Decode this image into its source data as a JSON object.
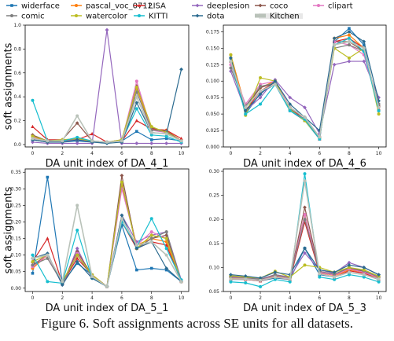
{
  "caption": "Figure 6. Soft assignments across SE units for all datasets.",
  "legend": [
    {
      "name": "widerface",
      "color": "#1f77b4",
      "marker": "square"
    },
    {
      "name": "pascal_voc_0712",
      "color": "#ff7f0e",
      "marker": "circle"
    },
    {
      "name": "LISA",
      "color": "#d62728",
      "marker": "triangle"
    },
    {
      "name": "deeplesion",
      "color": "#9467bd",
      "marker": "diamond"
    },
    {
      "name": "coco",
      "color": "#8c564b",
      "marker": "diamond"
    },
    {
      "name": "clipart",
      "color": "#e377c2",
      "marker": "circle"
    },
    {
      "name": "comic",
      "color": "#7f7f7f",
      "marker": "circle"
    },
    {
      "name": "watercolor",
      "color": "#bcbd22",
      "marker": "circle"
    },
    {
      "name": "KITTI",
      "color": "#17becf",
      "marker": "circle"
    },
    {
      "name": "dota",
      "color": "#2a6a8f",
      "marker": "diamond"
    },
    {
      "name": "Kitchen",
      "color": "#b9c2b9",
      "marker": "none"
    }
  ],
  "chart_data": [
    {
      "type": "line",
      "xlabel": "DA unit index of DA_4_1",
      "ylabel": "soft assignments",
      "xlim": [
        -0.5,
        10.5
      ],
      "ylim": [
        -0.02,
        1.0
      ],
      "xticks": [
        0,
        2,
        4,
        6,
        8,
        10
      ],
      "yticks": [
        0.0,
        0.2,
        0.4,
        0.6,
        0.8,
        1.0
      ],
      "yticklabels": [
        "0.0",
        "0.2",
        "0.4",
        "0.6",
        "0.8",
        "1.0"
      ],
      "x": [
        0,
        1,
        2,
        3,
        4,
        5,
        6,
        7,
        8,
        9,
        10
      ],
      "series": [
        {
          "name": "widerface",
          "values": [
            0.04,
            0.02,
            0.02,
            0.03,
            0.02,
            0.02,
            0.03,
            0.11,
            0.04,
            0.05,
            0.03
          ]
        },
        {
          "name": "pascal_voc_0712",
          "values": [
            0.06,
            0.03,
            0.03,
            0.05,
            0.03,
            0.02,
            0.04,
            0.47,
            0.13,
            0.12,
            0.03
          ]
        },
        {
          "name": "LISA",
          "values": [
            0.15,
            0.04,
            0.04,
            0.04,
            0.09,
            0.02,
            0.03,
            0.2,
            0.13,
            0.12,
            0.05
          ]
        },
        {
          "name": "deeplesion",
          "values": [
            0.02,
            0.01,
            0.01,
            0.01,
            0.01,
            0.96,
            0.01,
            0.01,
            0.01,
            0.01,
            0.01
          ]
        },
        {
          "name": "coco",
          "values": [
            0.08,
            0.03,
            0.04,
            0.18,
            0.03,
            0.02,
            0.04,
            0.49,
            0.14,
            0.11,
            0.03
          ]
        },
        {
          "name": "clipart",
          "values": [
            0.06,
            0.02,
            0.03,
            0.04,
            0.03,
            0.02,
            0.03,
            0.53,
            0.12,
            0.1,
            0.03
          ]
        },
        {
          "name": "comic",
          "values": [
            0.05,
            0.02,
            0.03,
            0.05,
            0.03,
            0.02,
            0.03,
            0.44,
            0.12,
            0.11,
            0.03
          ]
        },
        {
          "name": "watercolor",
          "values": [
            0.07,
            0.03,
            0.04,
            0.05,
            0.03,
            0.02,
            0.04,
            0.48,
            0.15,
            0.1,
            0.03
          ]
        },
        {
          "name": "KITTI",
          "values": [
            0.37,
            0.03,
            0.03,
            0.06,
            0.03,
            0.02,
            0.03,
            0.3,
            0.08,
            0.07,
            0.02
          ]
        },
        {
          "name": "dota",
          "values": [
            0.04,
            0.02,
            0.02,
            0.04,
            0.02,
            0.01,
            0.02,
            0.35,
            0.1,
            0.09,
            0.63
          ]
        },
        {
          "name": "Kitchen",
          "values": [
            0.05,
            0.03,
            0.03,
            0.24,
            0.03,
            0.02,
            0.03,
            0.4,
            0.1,
            0.09,
            0.03
          ]
        }
      ]
    },
    {
      "type": "line",
      "xlabel": "DA unit index of DA_4_6",
      "ylabel": "",
      "xlim": [
        -0.5,
        10.5
      ],
      "ylim": [
        0.0,
        0.185
      ],
      "xticks": [
        0,
        2,
        4,
        6,
        8,
        10
      ],
      "yticks": [
        0.0,
        0.025,
        0.05,
        0.075,
        0.1,
        0.125,
        0.15,
        0.175
      ],
      "yticklabels": [
        "0.000",
        "0.025",
        "0.050",
        "0.075",
        "0.100",
        "0.125",
        "0.150",
        "0.175"
      ],
      "x": [
        0,
        1,
        2,
        3,
        4,
        5,
        6,
        7,
        8,
        9,
        10
      ],
      "series": [
        {
          "name": "widerface",
          "values": [
            0.135,
            0.05,
            0.082,
            0.095,
            0.055,
            0.04,
            0.012,
            0.16,
            0.18,
            0.155,
            0.055
          ]
        },
        {
          "name": "pascal_voc_0712",
          "values": [
            0.14,
            0.06,
            0.09,
            0.1,
            0.06,
            0.04,
            0.015,
            0.165,
            0.17,
            0.15,
            0.06
          ]
        },
        {
          "name": "LISA",
          "values": [
            0.13,
            0.055,
            0.085,
            0.098,
            0.058,
            0.042,
            0.012,
            0.16,
            0.165,
            0.15,
            0.058
          ]
        },
        {
          "name": "deeplesion",
          "values": [
            0.115,
            0.055,
            0.075,
            0.102,
            0.075,
            0.06,
            0.02,
            0.125,
            0.13,
            0.13,
            0.075
          ]
        },
        {
          "name": "coco",
          "values": [
            0.13,
            0.06,
            0.09,
            0.097,
            0.06,
            0.045,
            0.015,
            0.16,
            0.16,
            0.145,
            0.062
          ]
        },
        {
          "name": "clipart",
          "values": [
            0.125,
            0.065,
            0.095,
            0.1,
            0.06,
            0.045,
            0.015,
            0.16,
            0.155,
            0.14,
            0.06
          ]
        },
        {
          "name": "comic",
          "values": [
            0.12,
            0.062,
            0.092,
            0.097,
            0.058,
            0.045,
            0.015,
            0.15,
            0.155,
            0.145,
            0.065
          ]
        },
        {
          "name": "watercolor",
          "values": [
            0.14,
            0.048,
            0.105,
            0.1,
            0.057,
            0.04,
            0.013,
            0.15,
            0.135,
            0.15,
            0.05
          ]
        },
        {
          "name": "KITTI",
          "values": [
            0.13,
            0.05,
            0.065,
            0.095,
            0.055,
            0.042,
            0.012,
            0.155,
            0.165,
            0.145,
            0.055
          ]
        },
        {
          "name": "dota",
          "values": [
            0.135,
            0.055,
            0.08,
            0.1,
            0.065,
            0.045,
            0.025,
            0.165,
            0.175,
            0.16,
            0.07
          ]
        },
        {
          "name": "Kitchen",
          "values": [
            0.13,
            0.06,
            0.085,
            0.095,
            0.06,
            0.045,
            0.015,
            0.155,
            0.16,
            0.15,
            0.06
          ]
        }
      ]
    },
    {
      "type": "line",
      "xlabel": "DA unit index of DA_5_1",
      "ylabel": "soft assignments",
      "xlim": [
        -0.5,
        10.5
      ],
      "ylim": [
        -0.01,
        0.36
      ],
      "xticks": [
        0,
        2,
        4,
        6,
        8,
        10
      ],
      "yticks": [
        0.0,
        0.05,
        0.1,
        0.15,
        0.2,
        0.25,
        0.3,
        0.35
      ],
      "yticklabels": [
        "0.00",
        "0.05",
        "0.10",
        "0.15",
        "0.20",
        "0.25",
        "0.30",
        "0.35"
      ],
      "x": [
        0,
        1,
        2,
        3,
        4,
        5,
        6,
        7,
        8,
        9,
        10
      ],
      "series": [
        {
          "name": "widerface",
          "values": [
            0.045,
            0.335,
            0.015,
            0.075,
            0.04,
            0.005,
            0.19,
            0.055,
            0.06,
            0.055,
            0.02
          ]
        },
        {
          "name": "pascal_voc_0712",
          "values": [
            0.06,
            0.1,
            0.015,
            0.1,
            0.04,
            0.005,
            0.31,
            0.13,
            0.15,
            0.14,
            0.02
          ]
        },
        {
          "name": "LISA",
          "values": [
            0.08,
            0.15,
            0.015,
            0.09,
            0.04,
            0.005,
            0.2,
            0.12,
            0.14,
            0.13,
            0.02
          ]
        },
        {
          "name": "deeplesion",
          "values": [
            0.09,
            0.1,
            0.01,
            0.12,
            0.03,
            0.005,
            0.22,
            0.14,
            0.16,
            0.17,
            0.025
          ]
        },
        {
          "name": "coco",
          "values": [
            0.07,
            0.1,
            0.015,
            0.11,
            0.04,
            0.005,
            0.34,
            0.12,
            0.15,
            0.16,
            0.02
          ]
        },
        {
          "name": "clipart",
          "values": [
            0.065,
            0.1,
            0.012,
            0.105,
            0.035,
            0.005,
            0.3,
            0.13,
            0.17,
            0.15,
            0.02
          ]
        },
        {
          "name": "comic",
          "values": [
            0.07,
            0.09,
            0.015,
            0.1,
            0.035,
            0.005,
            0.32,
            0.12,
            0.15,
            0.17,
            0.02
          ]
        },
        {
          "name": "watercolor",
          "values": [
            0.08,
            0.1,
            0.02,
            0.1,
            0.04,
            0.005,
            0.32,
            0.12,
            0.16,
            0.15,
            0.02
          ]
        },
        {
          "name": "KITTI",
          "values": [
            0.1,
            0.02,
            0.015,
            0.175,
            0.03,
            0.005,
            0.2,
            0.125,
            0.21,
            0.12,
            0.025
          ]
        },
        {
          "name": "dota",
          "values": [
            0.09,
            0.105,
            0.01,
            0.08,
            0.03,
            0.005,
            0.22,
            0.12,
            0.14,
            0.06,
            0.02
          ]
        },
        {
          "name": "Kitchen",
          "values": [
            0.09,
            0.1,
            0.02,
            0.25,
            0.035,
            0.005,
            0.21,
            0.13,
            0.14,
            0.1,
            0.02
          ]
        }
      ]
    },
    {
      "type": "line",
      "xlabel": "DA unit index of DA_5_3",
      "ylabel": "",
      "xlim": [
        -0.5,
        10.5
      ],
      "ylim": [
        0.05,
        0.305
      ],
      "xticks": [
        0,
        2,
        4,
        6,
        8,
        10
      ],
      "yticks": [
        0.05,
        0.1,
        0.15,
        0.2,
        0.25,
        0.3
      ],
      "yticklabels": [
        "0.05",
        "0.10",
        "0.15",
        "0.20",
        "0.25",
        "0.30"
      ],
      "x": [
        0,
        1,
        2,
        3,
        4,
        5,
        6,
        7,
        8,
        9,
        10
      ],
      "series": [
        {
          "name": "widerface",
          "values": [
            0.075,
            0.075,
            0.072,
            0.078,
            0.075,
            0.14,
            0.085,
            0.08,
            0.09,
            0.085,
            0.075
          ]
        },
        {
          "name": "pascal_voc_0712",
          "values": [
            0.078,
            0.077,
            0.074,
            0.082,
            0.077,
            0.21,
            0.09,
            0.083,
            0.095,
            0.09,
            0.078
          ]
        },
        {
          "name": "LISA",
          "values": [
            0.076,
            0.075,
            0.072,
            0.08,
            0.075,
            0.195,
            0.088,
            0.08,
            0.093,
            0.088,
            0.076
          ]
        },
        {
          "name": "deeplesion",
          "values": [
            0.082,
            0.08,
            0.076,
            0.085,
            0.08,
            0.13,
            0.095,
            0.088,
            0.11,
            0.1,
            0.085
          ]
        },
        {
          "name": "coco",
          "values": [
            0.08,
            0.078,
            0.075,
            0.083,
            0.078,
            0.225,
            0.092,
            0.085,
            0.098,
            0.092,
            0.08
          ]
        },
        {
          "name": "clipart",
          "values": [
            0.079,
            0.078,
            0.074,
            0.084,
            0.078,
            0.21,
            0.09,
            0.084,
            0.097,
            0.09,
            0.079
          ]
        },
        {
          "name": "comic",
          "values": [
            0.08,
            0.079,
            0.075,
            0.085,
            0.079,
            0.2,
            0.092,
            0.086,
            0.1,
            0.093,
            0.08
          ]
        },
        {
          "name": "watercolor",
          "values": [
            0.083,
            0.08,
            0.078,
            0.092,
            0.08,
            0.105,
            0.1,
            0.09,
            0.1,
            0.095,
            0.082
          ]
        },
        {
          "name": "KITTI",
          "values": [
            0.07,
            0.068,
            0.06,
            0.075,
            0.07,
            0.295,
            0.08,
            0.075,
            0.085,
            0.08,
            0.07
          ]
        },
        {
          "name": "dota",
          "values": [
            0.085,
            0.082,
            0.078,
            0.09,
            0.085,
            0.14,
            0.095,
            0.09,
            0.105,
            0.1,
            0.085
          ]
        },
        {
          "name": "Kitchen",
          "values": [
            0.076,
            0.076,
            0.073,
            0.08,
            0.076,
            0.28,
            0.087,
            0.08,
            0.09,
            0.085,
            0.076
          ]
        }
      ]
    }
  ]
}
